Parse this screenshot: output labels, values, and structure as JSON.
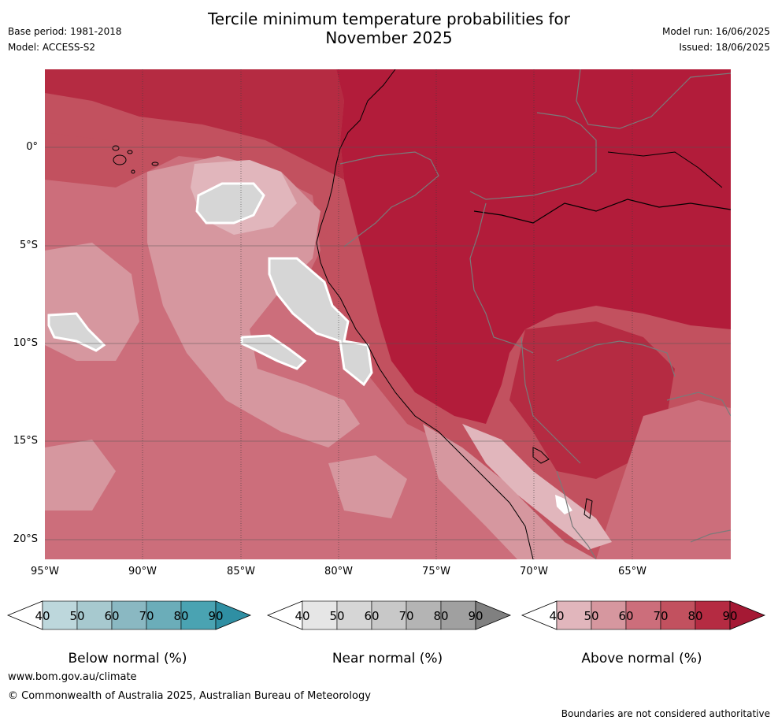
{
  "header": {
    "title_line1": "Tercile minimum temperature probabilities for",
    "title_line2": "November 2025",
    "base_period": "Base period: 1981-2018",
    "model": "Model: ACCESS-S2",
    "model_run": "Model run: 16/06/2025",
    "issued": "Issued: 18/06/2025"
  },
  "axes": {
    "lat_labels": [
      "0°",
      "5°S",
      "10°S",
      "15°S",
      "20°S"
    ],
    "lon_labels": [
      "95°W",
      "90°W",
      "85°W",
      "80°W",
      "75°W",
      "70°W",
      "65°W"
    ]
  },
  "legends": {
    "below": {
      "title": "Below normal (%)",
      "ticks": [
        "40",
        "50",
        "60",
        "70",
        "80",
        "90"
      ],
      "colors": [
        "#ffffff",
        "#bdd7dc",
        "#a7c9cf",
        "#8ab8c2",
        "#6badb9",
        "#4aa3b2",
        "#2f8fa3"
      ]
    },
    "near": {
      "title": "Near normal (%)",
      "ticks": [
        "40",
        "50",
        "60",
        "70",
        "80",
        "90"
      ],
      "colors": [
        "#ffffff",
        "#e6e6e6",
        "#d6d6d6",
        "#c8c8c8",
        "#b4b4b4",
        "#a0a0a0",
        "#808080"
      ]
    },
    "above": {
      "title": "Above normal (%)",
      "ticks": [
        "40",
        "50",
        "60",
        "70",
        "80",
        "90"
      ],
      "colors": [
        "#ffffff",
        "#e1b6bc",
        "#d6979f",
        "#cc6e7b",
        "#c2515f",
        "#b52b42",
        "#a51934"
      ]
    }
  },
  "footer": {
    "url": "www.bom.gov.au/climate",
    "copyright": "© Commonwealth of Australia 2025, Australian Bureau of Meteorology",
    "disclaimer": "Boundaries are not considered authoritative"
  }
}
